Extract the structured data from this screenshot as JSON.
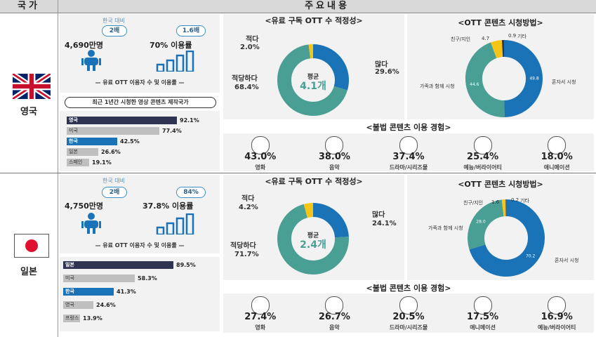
{
  "header": {
    "col1": "국가",
    "col2": "주요내용"
  },
  "colors": {
    "blue": "#1a73b6",
    "teal": "#4a9f94",
    "yellow": "#f5c518",
    "navy": "#2f3453",
    "gray": "#bfbfbf"
  },
  "uk": {
    "name": "영국",
    "compare_note": "한국 대비",
    "users_ratio": "2배",
    "usage_ratio": "1.6배",
    "users": "4,690만명",
    "usage": "70% 이용률",
    "stat_caption": "유료 OTT 이용자 수 및 이용률",
    "prod_title": "최근 1년간 시청한 영상 콘텐츠 제작국가",
    "bars": [
      {
        "label": "영국",
        "value": 92.1,
        "text": "92.1%",
        "color": "#2f3453"
      },
      {
        "label": "미국",
        "value": 77.4,
        "text": "77.4%",
        "color": "#bfbfbf"
      },
      {
        "label": "한국",
        "value": 42.5,
        "text": "42.5%",
        "color": "#1a73b6"
      },
      {
        "label": "일본",
        "value": 26.6,
        "text": "26.6%",
        "color": "#bfbfbf"
      },
      {
        "label": "스페인",
        "value": 19.1,
        "text": "19.1%",
        "color": "#bfbfbf"
      }
    ],
    "sub_title": "<유료 구독 OTT 수 적정성>",
    "sub_chart": {
      "segments": [
        {
          "label": "많다",
          "value": 29.6,
          "text": "29.6%",
          "color": "#1a73b6"
        },
        {
          "label": "적당하다",
          "value": 68.4,
          "text": "68.4%",
          "color": "#4a9f94"
        },
        {
          "label": "적다",
          "value": 2.0,
          "text": "2.0%",
          "color": "#f5c518"
        }
      ],
      "center_label": "평균",
      "center_value": "4.1개"
    },
    "watch_title": "<OTT 콘텐츠 시청방법>",
    "watch_chart": {
      "segments": [
        {
          "label": "혼자서 시청",
          "value": 49.8,
          "text": "49.8",
          "color": "#1a73b6"
        },
        {
          "label": "가족과 함께 시청",
          "value": 44.6,
          "text": "44.6",
          "color": "#4a9f94"
        },
        {
          "label": "친구/지인",
          "value": 4.7,
          "text": "4.7",
          "color": "#f5c518"
        },
        {
          "label": "기타",
          "value": 0.9,
          "text": "0.9",
          "color": "#2f3453"
        }
      ]
    },
    "illegal_title": "<불법 콘텐츠 이용 경험>",
    "illegal": [
      {
        "name": "영화",
        "pct": "43.0%"
      },
      {
        "name": "음악",
        "pct": "38.0%"
      },
      {
        "name": "드라마/시리즈물",
        "pct": "37.4%"
      },
      {
        "name": "예능/버라이어티",
        "pct": "25.4%"
      },
      {
        "name": "애니메이션",
        "pct": "18.0%"
      }
    ]
  },
  "jp": {
    "name": "일본",
    "compare_note": "한국 대비",
    "users_ratio": "2배",
    "usage_ratio": "84%",
    "users": "4,750만명",
    "usage": "37.8% 이용률",
    "stat_caption": "유료 OTT 이용자 수 및 이용률",
    "bars": [
      {
        "label": "일본",
        "value": 89.5,
        "text": "89.5%",
        "color": "#2f3453"
      },
      {
        "label": "미국",
        "value": 58.3,
        "text": "58.3%",
        "color": "#bfbfbf"
      },
      {
        "label": "한국",
        "value": 41.3,
        "text": "41.3%",
        "color": "#1a73b6"
      },
      {
        "label": "영국",
        "value": 24.6,
        "text": "24.6%",
        "color": "#bfbfbf"
      },
      {
        "label": "프랑스",
        "value": 13.9,
        "text": "13.9%",
        "color": "#bfbfbf"
      }
    ],
    "sub_title": "<유료 구독 OTT 수 적정성>",
    "sub_chart": {
      "segments": [
        {
          "label": "많다",
          "value": 24.1,
          "text": "24.1%",
          "color": "#1a73b6"
        },
        {
          "label": "적당하다",
          "value": 71.7,
          "text": "71.7%",
          "color": "#4a9f94"
        },
        {
          "label": "적다",
          "value": 4.2,
          "text": "4.2%",
          "color": "#f5c518"
        }
      ],
      "center_label": "평균",
      "center_value": "2.4개"
    },
    "watch_title": "<OTT 콘텐츠 시청방법>",
    "watch_chart": {
      "segments": [
        {
          "label": "혼자서 시청",
          "value": 70.2,
          "text": "70.2",
          "color": "#1a73b6"
        },
        {
          "label": "가족과 함께 시청",
          "value": 28.0,
          "text": "28.0",
          "color": "#4a9f94"
        },
        {
          "label": "친구/지인",
          "value": 1.6,
          "text": "1.6",
          "color": "#f5c518"
        },
        {
          "label": "기타",
          "value": 0.2,
          "text": "0.2",
          "color": "#2f3453"
        }
      ]
    },
    "illegal_title": "<불법 콘텐츠 이용 경험>",
    "illegal": [
      {
        "name": "영화",
        "pct": "27.4%"
      },
      {
        "name": "음악",
        "pct": "26.7%"
      },
      {
        "name": "드라마/시리즈물",
        "pct": "20.5%"
      },
      {
        "name": "애니메이션",
        "pct": "17.5%"
      },
      {
        "name": "예능/버라이어티",
        "pct": "16.9%"
      }
    ]
  },
  "chart_data": [
    {
      "type": "bar",
      "title": "최근 1년간 시청한 영상 콘텐츠 제작국가",
      "categories": [
        "영국",
        "미국",
        "한국",
        "일본",
        "스페인"
      ],
      "values": [
        92.1,
        77.4,
        42.5,
        26.6,
        19.1
      ]
    },
    {
      "type": "pie",
      "title": "<유료 구독 OTT 수 적정성>",
      "categories": [
        "많다",
        "적당하다",
        "적다"
      ],
      "values": [
        29.6,
        68.4,
        2.0
      ]
    },
    {
      "type": "pie",
      "title": "<OTT 콘텐츠 시청방법>",
      "categories": [
        "혼자서 시청",
        "가족과 함께 시청",
        "친구/지인",
        "기타"
      ],
      "values": [
        49.8,
        44.6,
        4.7,
        0.9
      ]
    },
    {
      "type": "bar",
      "title": "<불법 콘텐츠 이용 경험>",
      "categories": [
        "영화",
        "음악",
        "드라마/시리즈물",
        "예능/버라이어티",
        "애니메이션"
      ],
      "values": [
        43.0,
        38.0,
        37.4,
        25.4,
        18.0
      ]
    },
    {
      "type": "bar",
      "categories": [
        "일본",
        "미국",
        "한국",
        "영국",
        "프랑스"
      ],
      "values": [
        89.5,
        58.3,
        41.3,
        24.6,
        13.9
      ]
    },
    {
      "type": "pie",
      "title": "<유료 구독 OTT 수 적정성>",
      "categories": [
        "많다",
        "적당하다",
        "적다"
      ],
      "values": [
        24.1,
        71.7,
        4.2
      ]
    },
    {
      "type": "pie",
      "title": "<OTT 콘텐츠 시청방법>",
      "categories": [
        "혼자서 시청",
        "가족과 함께 시청",
        "친구/지인",
        "기타"
      ],
      "values": [
        70.2,
        28.0,
        1.6,
        0.2
      ]
    },
    {
      "type": "bar",
      "title": "<불법 콘텐츠 이용 경험>",
      "categories": [
        "영화",
        "음악",
        "드라마/시리즈물",
        "애니메이션",
        "예능/버라이어티"
      ],
      "values": [
        27.4,
        26.7,
        20.5,
        17.5,
        16.9
      ]
    }
  ]
}
